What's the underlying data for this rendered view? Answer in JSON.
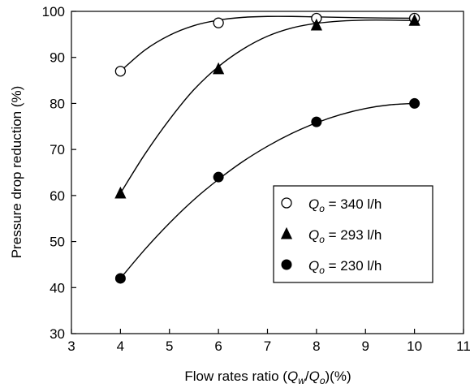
{
  "chart_data": {
    "type": "scatter",
    "xlabel": {
      "prefix": "Flow rates ratio (",
      "q1": "Q",
      "q1_sub": "w",
      "slash": "/",
      "q2": "Q",
      "q2_sub": "o",
      "suffix": ")(%)"
    },
    "ylabel": "Pressure drop reduction (%)",
    "xlim": [
      3,
      11
    ],
    "ylim": [
      30,
      100
    ],
    "xticks": [
      "3",
      "4",
      "5",
      "6",
      "7",
      "8",
      "9",
      "10",
      "11"
    ],
    "yticks": [
      "30",
      "40",
      "50",
      "60",
      "70",
      "80",
      "90",
      "100"
    ],
    "grid": false,
    "legend_position": "center-right",
    "series": [
      {
        "marker": "open-circle",
        "legend": {
          "q": "Q",
          "sub": "o",
          "rest": " = 340 l/h"
        },
        "x": [
          4,
          6,
          8,
          10
        ],
        "y": [
          87,
          97.5,
          98.5,
          98.5
        ],
        "fit": [
          [
            4,
            87
          ],
          [
            4.5,
            91.6
          ],
          [
            5,
            94.8
          ],
          [
            5.5,
            96.9
          ],
          [
            6,
            98.1
          ],
          [
            6.5,
            98.7
          ],
          [
            7,
            98.9
          ],
          [
            7.5,
            98.9
          ],
          [
            8,
            98.8
          ],
          [
            9,
            98.6
          ],
          [
            10,
            98.5
          ]
        ]
      },
      {
        "marker": "filled-triangle",
        "legend": {
          "q": "Q",
          "sub": "o",
          "rest": " = 293 l/h"
        },
        "x": [
          4,
          6,
          8,
          10
        ],
        "y": [
          60.5,
          87.5,
          97,
          98
        ],
        "fit": [
          [
            4,
            60.5
          ],
          [
            4.5,
            69
          ],
          [
            5,
            76.5
          ],
          [
            5.5,
            83
          ],
          [
            6,
            88
          ],
          [
            6.5,
            91.8
          ],
          [
            7,
            94.6
          ],
          [
            7.5,
            96.4
          ],
          [
            8,
            97.4
          ],
          [
            8.5,
            97.9
          ],
          [
            9,
            98.1
          ],
          [
            9.5,
            98.1
          ],
          [
            10,
            98
          ]
        ]
      },
      {
        "marker": "filled-circle",
        "legend": {
          "q": "Q",
          "sub": "o",
          "rest": " = 230 l/h"
        },
        "x": [
          4,
          6,
          8,
          10
        ],
        "y": [
          42,
          64,
          76,
          80
        ],
        "fit": [
          [
            4,
            42
          ],
          [
            4.5,
            48.3
          ],
          [
            5,
            54
          ],
          [
            5.5,
            59.1
          ],
          [
            6,
            63.5
          ],
          [
            6.5,
            67.4
          ],
          [
            7,
            70.7
          ],
          [
            7.5,
            73.5
          ],
          [
            8,
            75.8
          ],
          [
            8.5,
            77.6
          ],
          [
            9,
            78.9
          ],
          [
            9.5,
            79.7
          ],
          [
            10,
            80
          ]
        ]
      }
    ]
  }
}
